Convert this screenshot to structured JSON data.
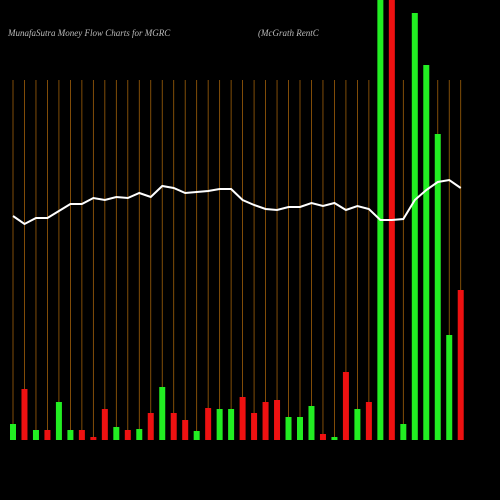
{
  "chart_data": {
    "type": "bar",
    "title": "MunafaSutra  Money Flow  Charts for MGRC",
    "subtitle": "(McGrath RentC",
    "categories": [
      null,
      null,
      null,
      null,
      null,
      null,
      null,
      null,
      null,
      null,
      null,
      null,
      null,
      null,
      null,
      null,
      null,
      null,
      null,
      null,
      null,
      null,
      null,
      null,
      null,
      null,
      null,
      null,
      null,
      null,
      null,
      null,
      null,
      null,
      null,
      null,
      null,
      null,
      null,
      null
    ],
    "values": [
      16,
      51,
      10,
      10,
      38,
      10,
      10,
      3,
      31,
      13,
      10,
      11,
      27,
      53,
      27,
      20,
      9,
      32,
      31,
      31,
      43,
      27,
      38,
      40,
      23,
      23,
      34,
      6,
      3,
      68,
      31,
      38,
      440,
      440,
      16,
      427,
      375,
      306,
      105,
      150
    ],
    "colors": [
      "#22ee22",
      "#ee1111",
      "#22ee22",
      "#ee1111",
      "#22ee22",
      "#22ee22",
      "#ee1111",
      "#ee1111",
      "#ee1111",
      "#22ee22",
      "#ee1111",
      "#22ee22",
      "#ee1111",
      "#22ee22",
      "#ee1111",
      "#ee1111",
      "#22ee22",
      "#ee1111",
      "#22ee22",
      "#22ee22",
      "#ee1111",
      "#ee1111",
      "#ee1111",
      "#ee1111",
      "#22ee22",
      "#22ee22",
      "#22ee22",
      "#ee1111",
      "#22ee22",
      "#ee1111",
      "#22ee22",
      "#ee1111",
      "#22ee22",
      "#ee1111",
      "#22ee22",
      "#22ee22",
      "#22ee22",
      "#22ee22",
      "#22ee22",
      "#ee1111"
    ],
    "ylim": [
      0,
      440
    ],
    "line": {
      "color": "#ffffff",
      "axis": "y2",
      "values": [
        224,
        216,
        222,
        222,
        229,
        236,
        236,
        242,
        240,
        243,
        242,
        247,
        243,
        254,
        252,
        247,
        248,
        249,
        251,
        251,
        240,
        235,
        231,
        230,
        233,
        233,
        237,
        234,
        237,
        230,
        234,
        231,
        220,
        220,
        221,
        240,
        250,
        258,
        260,
        252
      ]
    },
    "y2lim": [
      0,
      440
    ],
    "grid": true,
    "grid_color": "#a0600a"
  }
}
